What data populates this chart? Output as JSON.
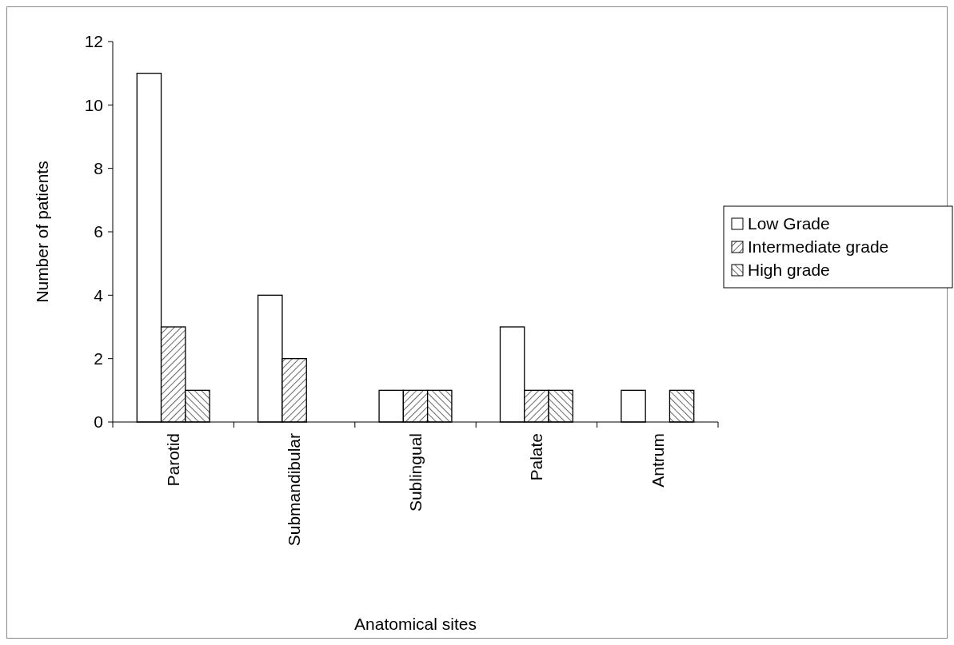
{
  "chart_data": {
    "type": "bar",
    "xlabel": "Anatomical sites",
    "ylabel": "Number of patients",
    "categories": [
      "Parotid",
      "Submandibular",
      "Sublingual",
      "Palate",
      "Antrum"
    ],
    "series": [
      {
        "name": "Low Grade",
        "color": "#ffffff",
        "values": [
          11,
          4,
          1,
          3,
          1
        ]
      },
      {
        "name": "Intermediate grade",
        "color": "#ffffff",
        "values": [
          3,
          2,
          1,
          1,
          0
        ]
      },
      {
        "name": "High grade",
        "color": "#ffffff",
        "values": [
          1,
          0,
          1,
          1,
          1
        ]
      }
    ],
    "ylim": [
      0,
      12
    ],
    "yticks": [
      0,
      2,
      4,
      6,
      8,
      10,
      12
    ],
    "grid": false,
    "legend": "right"
  }
}
